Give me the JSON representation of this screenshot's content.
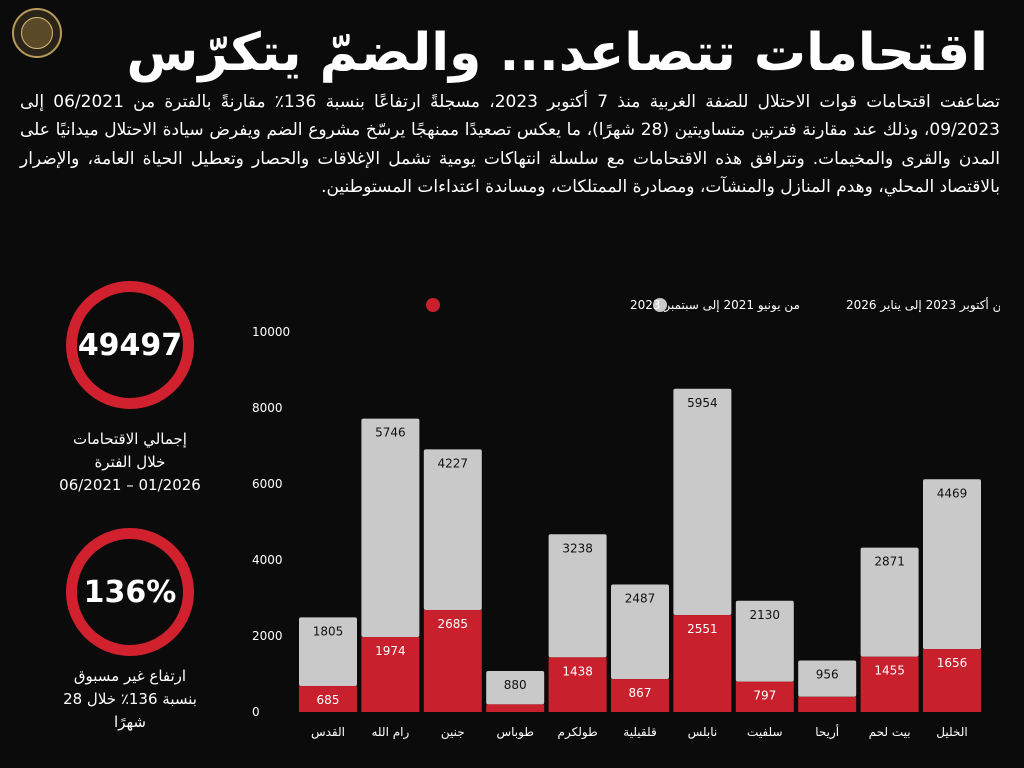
{
  "header": {
    "title": "اقتحامات تتصاعد... والضمّ يتكرّس",
    "paragraph": "تضاعفت اقتحامات قوات الاحتلال للضفة الغربية منذ 7 أكتوبر 2023، مسجلةً ارتفاعًا بنسبة 136٪ مقارنةً بالفترة من 06/2021 إلى 09/2023، وذلك عند مقارنة فترتين متساويتين (28 شهرًا)، ما يعكس تصعيدًا ممنهجًا يرسّخ مشروع الضم ويفرض سيادة الاحتلال ميدانيًا على المدن والقرى والمخيمات. وتترافق هذه الاقتحامات مع سلسلة انتهاكات يومية تشمل الإغلاقات والحصار وتعطيل الحياة العامة، والإضرار بالاقتصاد المحلي، وهدم المنازل والمنشآت، ومصادرة الممتلكات، ومساندة اعتداءات المستوطنين."
  },
  "stats": [
    {
      "value": "49497",
      "caption_lines": [
        "إجمالي الاقتحامات",
        "خلال الفترة",
        "06/2021 – 01/2026"
      ]
    },
    {
      "value": "136%",
      "caption_lines": [
        "ارتفاع غير مسبوق",
        "بنسبة 136٪ خلال 28",
        "شهرًا"
      ]
    }
  ],
  "colors": {
    "background": "#0b0b0b",
    "accent_red": "#c8202d",
    "bar_gray": "#c9c9c9",
    "ring_red": "#d1212e"
  },
  "chart_data": {
    "type": "bar",
    "stacked": true,
    "categories": [
      "القدس",
      "رام الله",
      "جنين",
      "طوباس",
      "طولكرم",
      "قلقيلية",
      "نابلس",
      "سلفيت",
      "أريحا",
      "بيت لحم",
      "الخليل"
    ],
    "series": [
      {
        "name": "من يونيو 2021 إلى سبتمبر 2023",
        "color": "#c8202d",
        "values": [
          685,
          1974,
          2685,
          200,
          1438,
          867,
          2551,
          797,
          400,
          1455,
          1656
        ],
        "labels": [
          "685",
          "1974",
          "2685",
          "",
          "1438",
          "867",
          "2551",
          "797",
          "",
          "1455",
          "1656"
        ]
      },
      {
        "name": "من أكتوبر 2023 إلى يناير 2026",
        "color": "#c9c9c9",
        "values": [
          1805,
          5746,
          4227,
          880,
          3238,
          2487,
          5954,
          2130,
          956,
          2871,
          4469
        ],
        "labels": [
          "1805",
          "5746",
          "4227",
          "880",
          "3238",
          "2487",
          "5954",
          "2130",
          "956",
          "2871",
          "4469"
        ]
      }
    ],
    "yticks": [
      "0",
      "2000",
      "4000",
      "6000",
      "8000",
      "10000"
    ],
    "ylim": [
      0,
      10000
    ],
    "legend_position": "top"
  }
}
